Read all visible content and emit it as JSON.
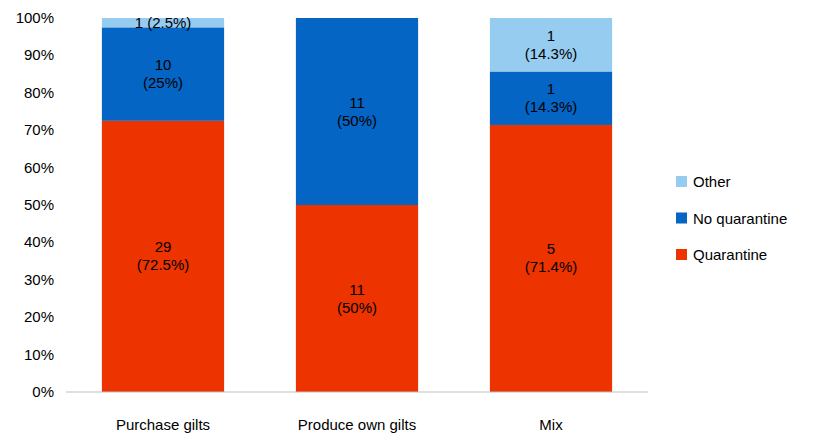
{
  "chart_data": {
    "type": "bar",
    "stacked": true,
    "data_labels": true,
    "grid": false,
    "legend": "right",
    "categories": [
      "Purchase gilts",
      "Produce own gilts",
      "Mix"
    ],
    "series": [
      {
        "name": "Quarantine",
        "color": "#ec3300",
        "values": [
          72.5,
          50,
          71.4
        ],
        "value_labels": [
          "29\n(72.5%)",
          "11\n(50%)",
          "5\n(71.4%)"
        ]
      },
      {
        "name": "No quarantine",
        "color": "#0565c4",
        "values": [
          25,
          50,
          14.3
        ],
        "value_labels": [
          "10\n(25%)",
          "11\n(50%)",
          "1\n(14.3%)"
        ]
      },
      {
        "name": "Other",
        "color": "#96ccf0",
        "values": [
          2.5,
          0,
          14.3
        ],
        "value_labels": [
          "1 (2.5%)",
          null,
          "1\n(14.3%)"
        ]
      }
    ],
    "ylim": [
      0,
      100
    ],
    "yticks": [
      {
        "value": 0,
        "label": "0%"
      },
      {
        "value": 10,
        "label": "10%"
      },
      {
        "value": 20,
        "label": "20%"
      },
      {
        "value": 30,
        "label": "30%"
      },
      {
        "value": 40,
        "label": "40%"
      },
      {
        "value": 50,
        "label": "50%"
      },
      {
        "value": 60,
        "label": "60%"
      },
      {
        "value": 70,
        "label": "70%"
      },
      {
        "value": 80,
        "label": "80%"
      },
      {
        "value": 90,
        "label": "90%"
      },
      {
        "value": 100,
        "label": "100%"
      }
    ]
  }
}
